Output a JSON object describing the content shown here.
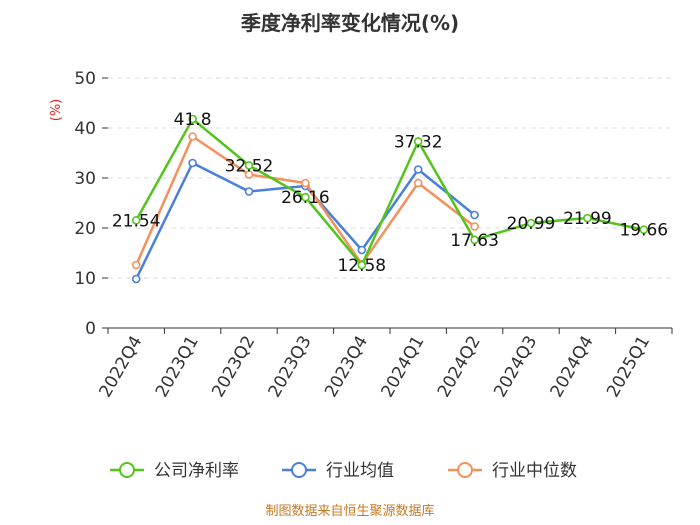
{
  "chart_data": {
    "type": "line",
    "title": "季度净利率变化情况(%)",
    "ylabel": "(%)",
    "xlabel": "",
    "ylim": [
      0,
      50
    ],
    "yticks": [
      0,
      10,
      20,
      30,
      40,
      50
    ],
    "categories": [
      "2022Q4",
      "2023Q1",
      "2023Q2",
      "2023Q3",
      "2023Q4",
      "2024Q1",
      "2024Q2",
      "2024Q3",
      "2024Q4",
      "2025Q1"
    ],
    "grid": true,
    "legend_position": "bottom",
    "series": [
      {
        "name": "公司净利率",
        "color": "#52c41a",
        "values": [
          21.54,
          41.8,
          32.52,
          26.16,
          12.58,
          37.32,
          17.63,
          20.99,
          21.99,
          19.66
        ],
        "labels": [
          "21.54",
          "41.8",
          "32.52",
          "26.16",
          "12.58",
          "37.32",
          "17.63",
          "20.99",
          "21.99",
          "19.66"
        ]
      },
      {
        "name": "行业均值",
        "color": "#4a7fdc",
        "values": [
          9.8,
          33.0,
          27.3,
          28.4,
          15.6,
          31.7,
          22.6,
          null,
          null,
          null
        ]
      },
      {
        "name": "行业中位数",
        "color": "#f4905c",
        "values": [
          12.6,
          38.3,
          30.7,
          29.0,
          12.8,
          29.0,
          20.3,
          null,
          null,
          null
        ]
      }
    ]
  },
  "footer": {
    "source": "制图数据来自恒生聚源数据库"
  }
}
